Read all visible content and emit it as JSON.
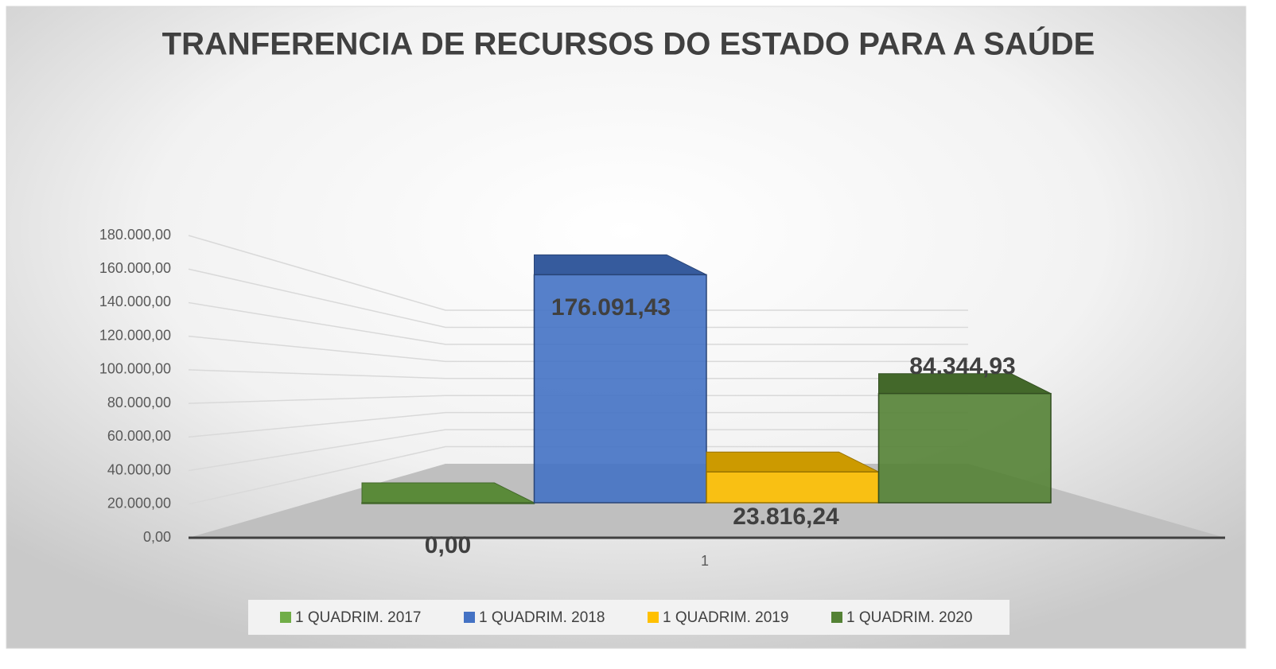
{
  "chart_data": {
    "type": "bar3d",
    "title": "TRANFERENCIA DE RECURSOS DO ESTADO PARA A SAÚDE",
    "categories": [
      "1"
    ],
    "series": [
      {
        "name": "1 QUADRIM. 2017",
        "color": "#70ad47",
        "values": [
          0
        ],
        "value_labels": [
          "0,00"
        ]
      },
      {
        "name": "1 QUADRIM. 2018",
        "color": "#4472c4",
        "values": [
          176091.43
        ],
        "value_labels": [
          "176.091,43"
        ]
      },
      {
        "name": "1 QUADRIM. 2019",
        "color": "#ffc000",
        "values": [
          23816.24
        ],
        "value_labels": [
          "23.816,24"
        ]
      },
      {
        "name": "1 QUADRIM. 2020",
        "color": "#548235",
        "values": [
          84344.93
        ],
        "value_labels": [
          "84.344,93"
        ]
      }
    ],
    "ylim": [
      0,
      180000
    ],
    "yticks": [
      {
        "value": 0,
        "label": "0,00"
      },
      {
        "value": 20000,
        "label": "20.000,00"
      },
      {
        "value": 40000,
        "label": "40.000,00"
      },
      {
        "value": 60000,
        "label": "60.000,00"
      },
      {
        "value": 80000,
        "label": "80.000,00"
      },
      {
        "value": 100000,
        "label": "100.000,00"
      },
      {
        "value": 120000,
        "label": "120.000,00"
      },
      {
        "value": 140000,
        "label": "140.000,00"
      },
      {
        "value": 160000,
        "label": "160.000,00"
      },
      {
        "value": 180000,
        "label": "180.000,00"
      }
    ],
    "grid": true,
    "legend": "bottom"
  }
}
